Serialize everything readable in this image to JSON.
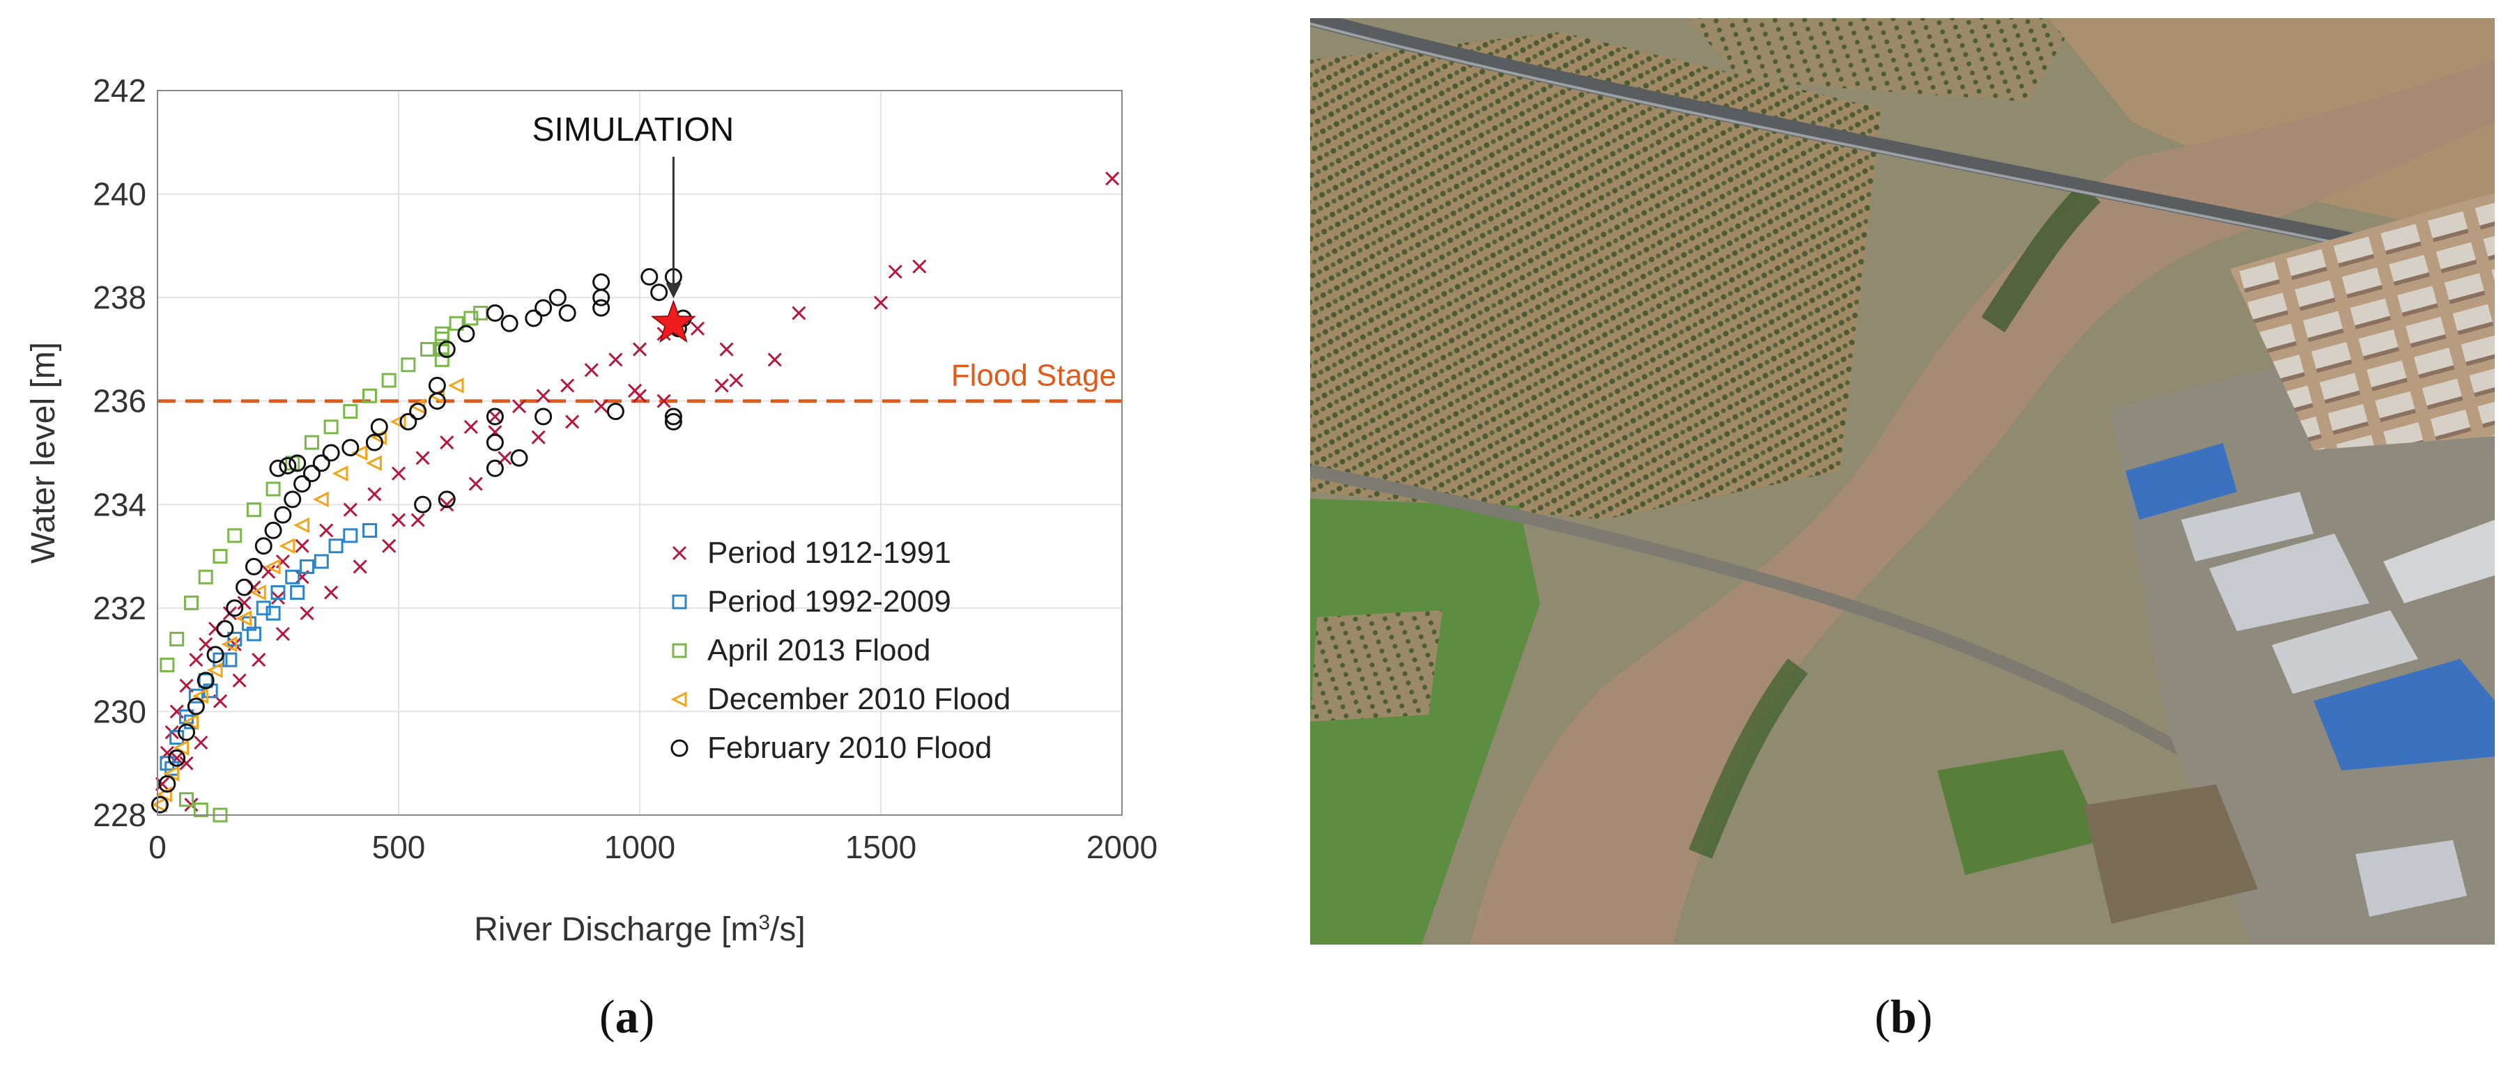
{
  "figure": {
    "panel_a_prefix": "(",
    "panel_a_letter": "a",
    "panel_a_suffix": ")",
    "panel_b_prefix": "(",
    "panel_b_letter": "b",
    "panel_b_suffix": ")"
  },
  "chart_data": {
    "type": "scatter",
    "xlabel_prefix": "River Discharge [m",
    "xlabel_sup": "3",
    "xlabel_suffix": "/s]",
    "ylabel": "Water level [m]",
    "xlim": [
      0,
      2000
    ],
    "ylim": [
      228,
      242
    ],
    "xticks": [
      0,
      500,
      1000,
      1500,
      2000
    ],
    "yticks": [
      228,
      230,
      232,
      234,
      236,
      238,
      240,
      242
    ],
    "grid": true,
    "legend_position": "lower-right",
    "flood_stage": {
      "label": "Flood Stage",
      "value": 236,
      "color": "#e05a1a"
    },
    "simulation": {
      "label": "SIMULATION",
      "x": 1070,
      "y": 237.5,
      "color": "#ee1c1c"
    },
    "series": [
      {
        "name": "Period 1912-1991",
        "marker": "x",
        "color": "#b5183c",
        "points": [
          [
            10,
            228.6
          ],
          [
            20,
            229.2
          ],
          [
            30,
            229.6
          ],
          [
            40,
            230.0
          ],
          [
            60,
            230.5
          ],
          [
            80,
            231.0
          ],
          [
            100,
            231.3
          ],
          [
            120,
            231.6
          ],
          [
            150,
            231.9
          ],
          [
            180,
            232.1
          ],
          [
            200,
            232.4
          ],
          [
            230,
            232.7
          ],
          [
            260,
            232.9
          ],
          [
            300,
            233.2
          ],
          [
            350,
            233.5
          ],
          [
            400,
            233.9
          ],
          [
            450,
            234.2
          ],
          [
            500,
            234.6
          ],
          [
            550,
            234.9
          ],
          [
            600,
            235.2
          ],
          [
            650,
            235.5
          ],
          [
            700,
            235.7
          ],
          [
            750,
            235.9
          ],
          [
            800,
            236.1
          ],
          [
            850,
            236.3
          ],
          [
            900,
            236.6
          ],
          [
            950,
            236.8
          ],
          [
            1000,
            237.0
          ],
          [
            1050,
            237.3
          ],
          [
            1120,
            237.4
          ],
          [
            1180,
            237.0
          ],
          [
            1280,
            236.8
          ],
          [
            1330,
            237.7
          ],
          [
            1500,
            237.9
          ],
          [
            1530,
            238.5
          ],
          [
            1580,
            238.6
          ],
          [
            1980,
            240.3
          ],
          [
            60,
            229.0
          ],
          [
            90,
            229.4
          ],
          [
            130,
            230.2
          ],
          [
            170,
            230.6
          ],
          [
            210,
            231.0
          ],
          [
            260,
            231.5
          ],
          [
            310,
            231.9
          ],
          [
            360,
            232.3
          ],
          [
            420,
            232.8
          ],
          [
            480,
            233.2
          ],
          [
            540,
            233.7
          ],
          [
            600,
            234.0
          ],
          [
            660,
            234.4
          ],
          [
            720,
            234.9
          ],
          [
            790,
            235.3
          ],
          [
            860,
            235.6
          ],
          [
            920,
            235.9
          ],
          [
            990,
            236.2
          ],
          [
            1000,
            236.1
          ],
          [
            1170,
            236.3
          ],
          [
            1050,
            236.0
          ],
          [
            70,
            228.2
          ],
          [
            300,
            232.6
          ],
          [
            500,
            233.7
          ],
          [
            700,
            235.4
          ],
          [
            1200,
            236.4
          ],
          [
            40,
            229.1
          ],
          [
            160,
            231.3
          ],
          [
            250,
            232.2
          ]
        ]
      },
      {
        "name": "Period 1992-2009",
        "marker": "square",
        "color": "#2c84c9",
        "points": [
          [
            20,
            229.0
          ],
          [
            40,
            229.5
          ],
          [
            60,
            229.9
          ],
          [
            80,
            230.3
          ],
          [
            100,
            230.6
          ],
          [
            130,
            231.0
          ],
          [
            160,
            231.4
          ],
          [
            190,
            231.7
          ],
          [
            220,
            232.0
          ],
          [
            250,
            232.3
          ],
          [
            280,
            232.6
          ],
          [
            310,
            232.8
          ],
          [
            340,
            232.9
          ],
          [
            370,
            233.2
          ],
          [
            400,
            233.4
          ],
          [
            440,
            233.5
          ],
          [
            30,
            228.9
          ],
          [
            70,
            229.8
          ],
          [
            110,
            230.4
          ],
          [
            150,
            231.0
          ],
          [
            200,
            231.5
          ],
          [
            240,
            231.9
          ],
          [
            290,
            232.3
          ]
        ]
      },
      {
        "name": "April 2013 Flood",
        "marker": "square",
        "color": "#7ab648",
        "points": [
          [
            20,
            230.9
          ],
          [
            40,
            231.4
          ],
          [
            70,
            232.1
          ],
          [
            100,
            232.6
          ],
          [
            130,
            233.0
          ],
          [
            160,
            233.4
          ],
          [
            200,
            233.9
          ],
          [
            240,
            234.3
          ],
          [
            280,
            234.8
          ],
          [
            320,
            235.2
          ],
          [
            360,
            235.5
          ],
          [
            400,
            235.8
          ],
          [
            440,
            236.1
          ],
          [
            480,
            236.4
          ],
          [
            520,
            236.7
          ],
          [
            560,
            237.0
          ],
          [
            590,
            237.3
          ],
          [
            620,
            237.5
          ],
          [
            650,
            237.6
          ],
          [
            670,
            237.7
          ],
          [
            130,
            228.0
          ],
          [
            90,
            228.1
          ],
          [
            60,
            228.3
          ],
          [
            590,
            237.0
          ],
          [
            590,
            236.8
          ],
          [
            590,
            237.2
          ]
        ]
      },
      {
        "name": "December 2010 Flood",
        "marker": "triangle-left",
        "color": "#f3a51a",
        "points": [
          [
            5,
            228.2
          ],
          [
            15,
            228.4
          ],
          [
            30,
            228.8
          ],
          [
            50,
            229.3
          ],
          [
            70,
            229.8
          ],
          [
            90,
            230.3
          ],
          [
            120,
            230.8
          ],
          [
            150,
            231.3
          ],
          [
            180,
            231.8
          ],
          [
            210,
            232.3
          ],
          [
            240,
            232.8
          ],
          [
            270,
            233.2
          ],
          [
            300,
            233.6
          ],
          [
            340,
            234.1
          ],
          [
            380,
            234.6
          ],
          [
            420,
            235.0
          ],
          [
            460,
            235.3
          ],
          [
            500,
            235.6
          ],
          [
            540,
            235.9
          ],
          [
            580,
            236.1
          ],
          [
            620,
            236.3
          ],
          [
            450,
            234.8
          ]
        ]
      },
      {
        "name": "February 2010 Flood",
        "marker": "circle",
        "color": "#111111",
        "points": [
          [
            5,
            228.2
          ],
          [
            20,
            228.6
          ],
          [
            40,
            229.1
          ],
          [
            60,
            229.6
          ],
          [
            80,
            230.1
          ],
          [
            100,
            230.6
          ],
          [
            120,
            231.1
          ],
          [
            140,
            231.6
          ],
          [
            160,
            232.0
          ],
          [
            180,
            232.4
          ],
          [
            200,
            232.8
          ],
          [
            220,
            233.2
          ],
          [
            240,
            233.5
          ],
          [
            260,
            233.8
          ],
          [
            280,
            234.1
          ],
          [
            300,
            234.4
          ],
          [
            320,
            234.6
          ],
          [
            340,
            234.8
          ],
          [
            360,
            235.0
          ],
          [
            250,
            234.7
          ],
          [
            270,
            234.75
          ],
          [
            290,
            234.8
          ],
          [
            400,
            235.1
          ],
          [
            450,
            235.2
          ],
          [
            460,
            235.5
          ],
          [
            520,
            235.6
          ],
          [
            540,
            235.8
          ],
          [
            580,
            236.0
          ],
          [
            580,
            236.3
          ],
          [
            600,
            237.0
          ],
          [
            640,
            237.3
          ],
          [
            700,
            235.7
          ],
          [
            700,
            235.2
          ],
          [
            700,
            234.7
          ],
          [
            750,
            234.9
          ],
          [
            700,
            237.7
          ],
          [
            730,
            237.5
          ],
          [
            780,
            237.6
          ],
          [
            800,
            237.8
          ],
          [
            830,
            238.0
          ],
          [
            850,
            237.7
          ],
          [
            800,
            235.7
          ],
          [
            920,
            238.3
          ],
          [
            920,
            238.0
          ],
          [
            920,
            237.8
          ],
          [
            950,
            235.8
          ],
          [
            1020,
            238.4
          ],
          [
            1040,
            238.1
          ],
          [
            1070,
            238.4
          ],
          [
            1080,
            237.4
          ],
          [
            1090,
            237.6
          ],
          [
            1070,
            235.7
          ],
          [
            1070,
            235.6
          ],
          [
            600,
            234.1
          ],
          [
            550,
            234.0
          ]
        ]
      }
    ]
  },
  "photo": {
    "colors": {
      "river": "#a48872",
      "olive": "#9a8664",
      "field": "#5a8a3e",
      "building": "#3a72c0",
      "roof": "#c9ccd0"
    }
  }
}
